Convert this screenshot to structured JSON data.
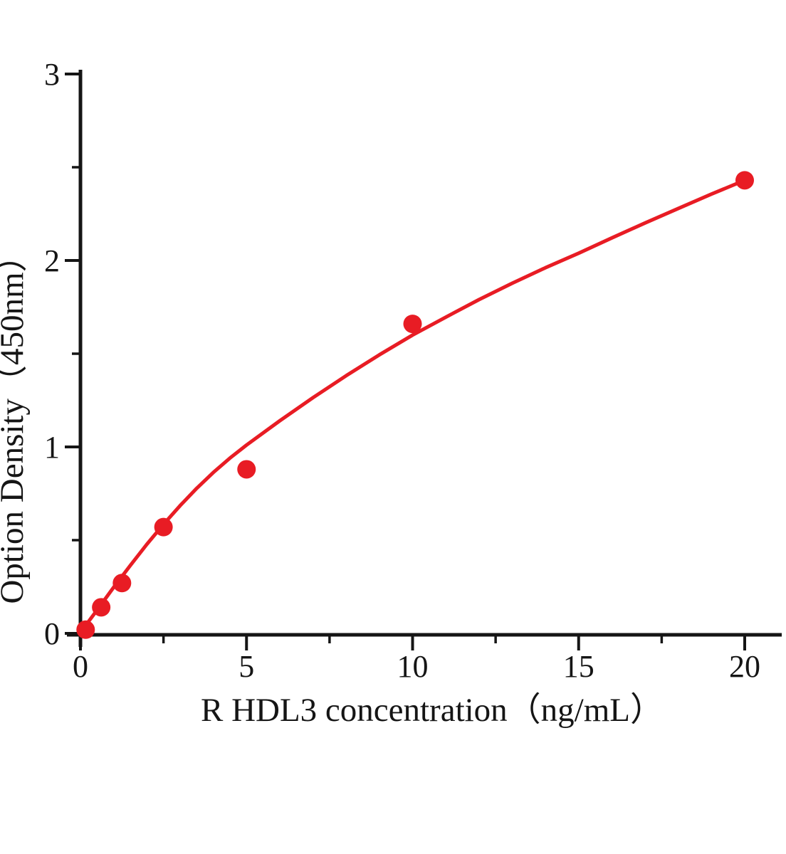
{
  "figure": {
    "background": "#ffffff",
    "kind": "ELISA standard curve plot"
  },
  "chart_data": {
    "type": "scatter",
    "title": "",
    "xlabel": "R HDL3 concentration（ng/mL）",
    "ylabel": "Option Density（450nm）",
    "xlim": [
      0,
      21.2
    ],
    "ylim": [
      0,
      3
    ],
    "grid": false,
    "legend": false,
    "x_major_ticks": [
      0,
      5,
      10,
      15,
      20
    ],
    "x_minor_ticks": [
      2.5,
      7.5,
      12.5,
      17.5
    ],
    "y_major_ticks": [
      0,
      1,
      2,
      3
    ],
    "y_minor_ticks": [
      0.5,
      1.5,
      2.5
    ],
    "point_color": "#e81c24",
    "line_color": "#e81c24",
    "axis_color": "#151515",
    "points": [
      {
        "x": 0.156,
        "y": 0.02
      },
      {
        "x": 0.625,
        "y": 0.14
      },
      {
        "x": 1.25,
        "y": 0.27
      },
      {
        "x": 2.5,
        "y": 0.57
      },
      {
        "x": 5,
        "y": 0.88
      },
      {
        "x": 10,
        "y": 1.66
      },
      {
        "x": 20,
        "y": 2.43
      }
    ],
    "fit_curve": {
      "x": [
        0,
        0.5,
        1,
        1.5,
        2,
        2.5,
        3,
        3.5,
        4,
        4.5,
        5,
        6,
        7,
        8,
        9,
        10,
        11,
        12,
        13,
        14,
        15,
        16,
        17,
        18,
        19,
        20
      ],
      "y": [
        0.005,
        0.125,
        0.247,
        0.364,
        0.478,
        0.585,
        0.685,
        0.778,
        0.863,
        0.94,
        1.01,
        1.14,
        1.264,
        1.382,
        1.494,
        1.6,
        1.696,
        1.79,
        1.878,
        1.961,
        2.039,
        2.121,
        2.201,
        2.279,
        2.356,
        2.43
      ]
    }
  }
}
